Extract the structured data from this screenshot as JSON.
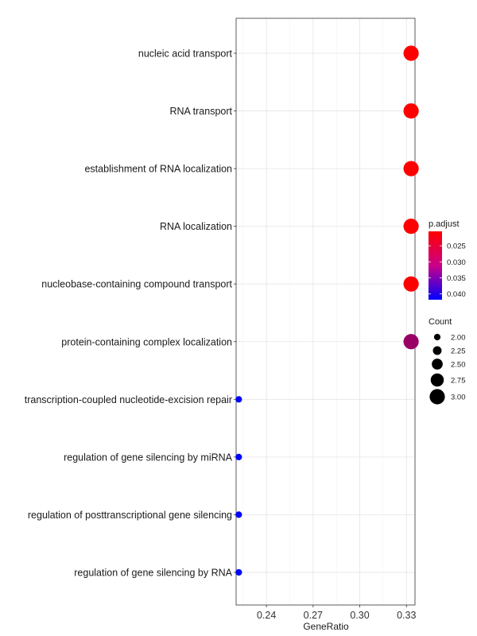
{
  "chart_data": {
    "type": "scatter",
    "xlabel": "GeneRatio",
    "ylabel": "",
    "xlim": [
      0.2205,
      0.3355
    ],
    "xticks": [
      0.24,
      0.27,
      0.3,
      0.33
    ],
    "xtick_labels": [
      "0.24",
      "0.27",
      "0.30",
      "0.33"
    ],
    "grid": true,
    "legend_position": "right",
    "categories": [
      "nucleic acid transport",
      "RNA transport",
      "establishment of RNA localization",
      "RNA localization",
      "nucleobase-containing compound transport",
      "protein-containing complex localization",
      "transcription-coupled nucleotide-excision repair",
      "regulation of gene silencing by miRNA",
      "regulation of posttranscriptional gene silencing",
      "regulation of gene silencing by RNA"
    ],
    "points": [
      {
        "category": "nucleic acid transport",
        "gene_ratio": 0.333,
        "count": 3,
        "p_adjust": 0.0205
      },
      {
        "category": "RNA transport",
        "gene_ratio": 0.333,
        "count": 3,
        "p_adjust": 0.0205
      },
      {
        "category": "establishment of RNA localization",
        "gene_ratio": 0.333,
        "count": 3,
        "p_adjust": 0.0205
      },
      {
        "category": "RNA localization",
        "gene_ratio": 0.333,
        "count": 3,
        "p_adjust": 0.0207
      },
      {
        "category": "nucleobase-containing compound transport",
        "gene_ratio": 0.333,
        "count": 3,
        "p_adjust": 0.0207
      },
      {
        "category": "protein-containing complex localization",
        "gene_ratio": 0.333,
        "count": 3,
        "p_adjust": 0.029
      },
      {
        "category": "transcription-coupled nucleotide-excision repair",
        "gene_ratio": 0.2222,
        "count": 2,
        "p_adjust": 0.0418
      },
      {
        "category": "regulation of gene silencing by miRNA",
        "gene_ratio": 0.2222,
        "count": 2,
        "p_adjust": 0.0418
      },
      {
        "category": "regulation of posttranscriptional gene silencing",
        "gene_ratio": 0.2222,
        "count": 2,
        "p_adjust": 0.0418
      },
      {
        "category": "regulation of gene silencing by RNA",
        "gene_ratio": 0.2222,
        "count": 2,
        "p_adjust": 0.0418
      }
    ],
    "color_legend": {
      "title": "p.adjust",
      "range": [
        0.0205,
        0.0418
      ],
      "breaks": [
        0.025,
        0.03,
        0.035,
        0.04
      ],
      "labels": [
        "0.025",
        "0.030",
        "0.035",
        "0.040"
      ],
      "low_color": "#ff0000",
      "high_color": "#0000ff"
    },
    "size_legend": {
      "title": "Count",
      "range": [
        2,
        3
      ],
      "breaks": [
        2.0,
        2.25,
        2.5,
        2.75,
        3.0
      ],
      "labels": [
        "2.00",
        "2.25",
        "2.50",
        "2.75",
        "3.00"
      ]
    }
  }
}
